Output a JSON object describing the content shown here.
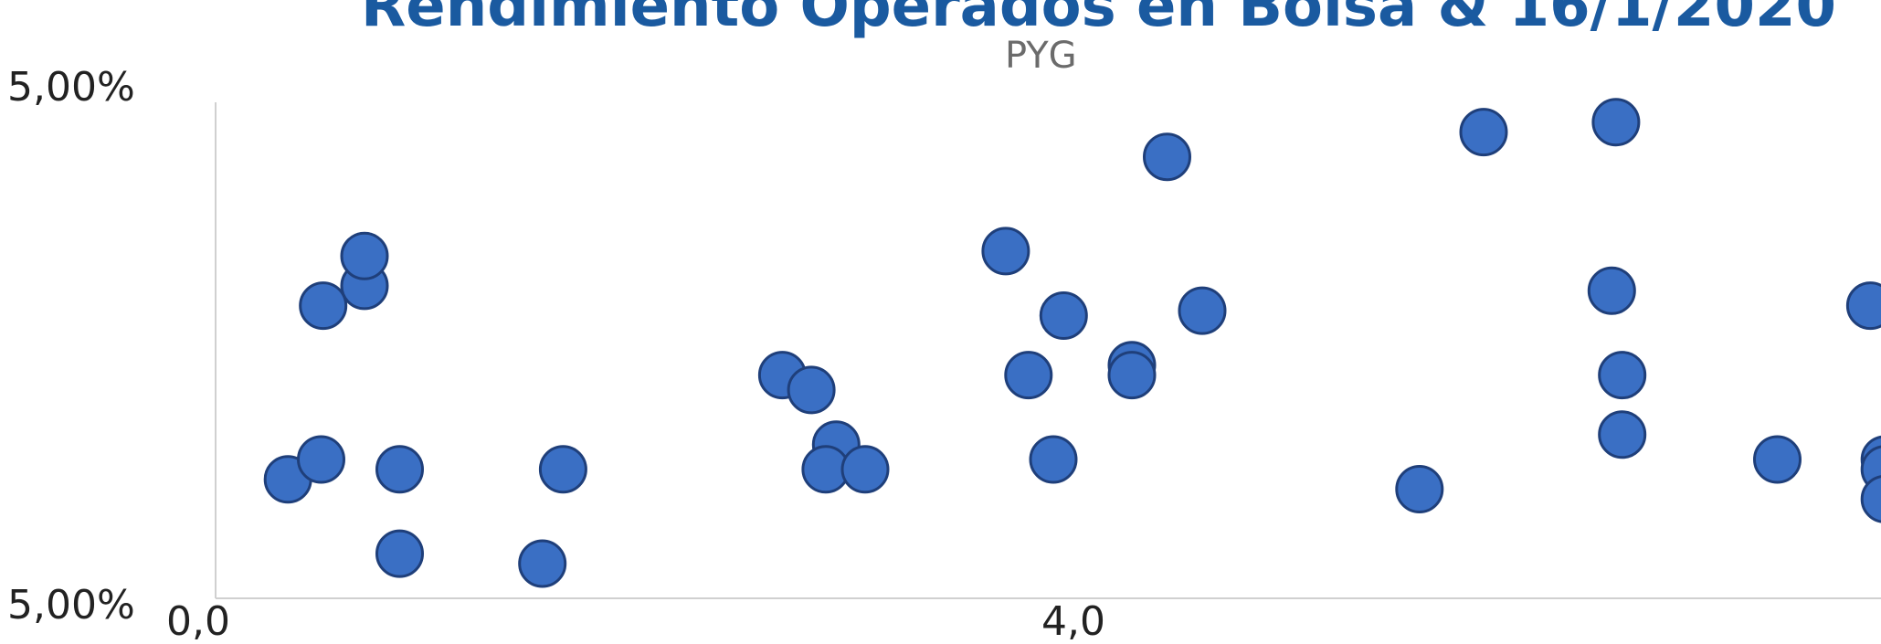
{
  "chart_data": {
    "type": "scatter",
    "title": "Rendimiento Operados en Bolsa & 16/1/2020",
    "subtitle": "PYG",
    "y_tick_labels": [
      "5,00%",
      "5,00%"
    ],
    "x_tick_labels": [
      "0,0",
      "4,0"
    ],
    "xlim": [
      0.0,
      8.1
    ],
    "ylim": [
      0.0,
      1.0
    ],
    "grid": false,
    "marker_color": "#3a6fc4",
    "marker_edge_color": "#1f3f7a",
    "points": [
      {
        "x": 0.35,
        "y": 0.24
      },
      {
        "x": 0.51,
        "y": 0.28
      },
      {
        "x": 0.52,
        "y": 0.59
      },
      {
        "x": 0.72,
        "y": 0.63
      },
      {
        "x": 0.72,
        "y": 0.69
      },
      {
        "x": 0.89,
        "y": 0.26
      },
      {
        "x": 0.89,
        "y": 0.09
      },
      {
        "x": 1.58,
        "y": 0.07
      },
      {
        "x": 1.68,
        "y": 0.26
      },
      {
        "x": 2.74,
        "y": 0.45
      },
      {
        "x": 2.88,
        "y": 0.42
      },
      {
        "x": 3.0,
        "y": 0.31
      },
      {
        "x": 2.95,
        "y": 0.26
      },
      {
        "x": 3.14,
        "y": 0.26
      },
      {
        "x": 3.82,
        "y": 0.7
      },
      {
        "x": 3.93,
        "y": 0.45
      },
      {
        "x": 4.05,
        "y": 0.28
      },
      {
        "x": 4.1,
        "y": 0.57
      },
      {
        "x": 4.43,
        "y": 0.47
      },
      {
        "x": 4.43,
        "y": 0.45
      },
      {
        "x": 4.6,
        "y": 0.89
      },
      {
        "x": 4.77,
        "y": 0.58
      },
      {
        "x": 5.82,
        "y": 0.22
      },
      {
        "x": 6.13,
        "y": 0.94
      },
      {
        "x": 6.75,
        "y": 0.62
      },
      {
        "x": 6.77,
        "y": 0.96
      },
      {
        "x": 6.8,
        "y": 0.45
      },
      {
        "x": 6.8,
        "y": 0.33
      },
      {
        "x": 7.55,
        "y": 0.28
      },
      {
        "x": 8.0,
        "y": 0.59
      },
      {
        "x": 8.07,
        "y": 0.28
      },
      {
        "x": 8.07,
        "y": 0.26
      },
      {
        "x": 8.07,
        "y": 0.2
      }
    ]
  }
}
